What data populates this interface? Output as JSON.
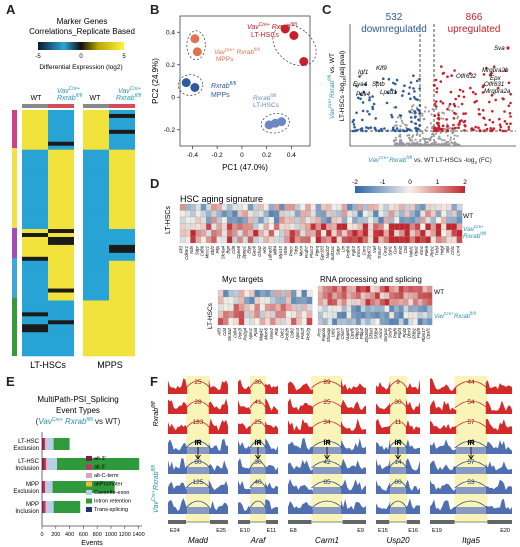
{
  "panels": {
    "A": "A",
    "B": "B",
    "C": "C",
    "D": "D",
    "E": "E",
    "F": "F"
  },
  "panel_a": {
    "title_line1": "Marker Genes",
    "title_line2": "Correlations_Replicate Based",
    "colorbar_ticks": [
      "-5",
      "0",
      "5"
    ],
    "colorbar_label": "Differential Expression (log2)",
    "col_wt_1": "WT",
    "col_ko_1_a": "Vav",
    "col_ko_1_b": "Cre+",
    "col_ko_1_c": "Rxrab",
    "col_ko_1_d": "fl/fl",
    "col_wt_2": "WT",
    "bottom_left": "LT-HSCs",
    "bottom_right": "MPPS"
  },
  "chart_data": [
    {
      "type": "scatter",
      "panel": "B",
      "xlabel": "PC1 (47.0%)",
      "ylabel": "PC2 (24.9%)",
      "xlim": [
        -0.5,
        0.55
      ],
      "ylim": [
        -0.3,
        0.5
      ],
      "xticks": [
        "-0.4",
        "-0.2",
        "0",
        "0.2",
        "0.4"
      ],
      "yticks": [
        "-0.2",
        "0",
        "0.2",
        "0.4"
      ],
      "series": [
        {
          "name": "Vav Cre+ Rxrab fl/fl LT-HSCs",
          "color": "#c8202a",
          "points": [
            [
              0.35,
              0.42
            ],
            [
              0.42,
              0.38
            ],
            [
              0.5,
              0.22
            ]
          ]
        },
        {
          "name": "Vav Cre+ Rxrab fl/fl MPPs",
          "color": "#e0734f",
          "points": [
            [
              -0.38,
              0.36
            ],
            [
              -0.36,
              0.28
            ]
          ]
        },
        {
          "name": "Rxrab fl/fl MPPs",
          "color": "#2e5b9a",
          "points": [
            [
              -0.45,
              0.09
            ],
            [
              -0.38,
              0.06
            ]
          ]
        },
        {
          "name": "Rxrab fl/fl LT-HSCs",
          "color": "#6e86c3",
          "points": [
            [
              0.22,
              -0.17
            ],
            [
              0.27,
              -0.16
            ],
            [
              0.32,
              -0.15
            ]
          ]
        }
      ],
      "labels": {
        "red_1": "Vav",
        "red_2": "Cre+",
        "red_3": " Rxrab",
        "red_4": "fl/fl",
        "red_5": "LT-HSCs",
        "orange_1": "Vav",
        "orange_2": "Cre+",
        "orange_3": " Rxrab",
        "orange_4": "fl/fl",
        "orange_5": "MPPs",
        "blue_1": "Rxrab",
        "blue_2": "fl/fl",
        "blue_3": "MPPs",
        "lblue_1": "Rxrab",
        "lblue_2": "fl/fl",
        "lblue_3": "LT-HSCs"
      }
    },
    {
      "type": "scatter",
      "panel": "C",
      "down_count": "532",
      "down_label": "downregulated",
      "up_count": "866",
      "up_label": "upregulated",
      "xlabel_1": "Vav",
      "xlabel_2": "Cre+",
      "xlabel_3": "Rxrab",
      "xlabel_4": "fl/fl",
      "xlabel_5": " vs. WT LT-HSCs -log",
      "xlabel_6": "2",
      "xlabel_7": " (FC)",
      "ylabel_1": "Vav",
      "ylabel_2": "Cre+",
      "ylabel_3": "Rxrab",
      "ylabel_4": "fl/fl",
      "ylabel_5": " vs. WT",
      "ylabel_6": "LT-HSCs -log",
      "ylabel_7": "10",
      "ylabel_8": "(adj pval)",
      "gene_labels": [
        "Sva",
        "Igf1",
        "Klf9",
        "Eya4",
        "Sptb",
        "Pdk4",
        "Lpcd1",
        "Olfr632",
        "Mrgpra2b",
        "Epx",
        "Olfr631",
        "Mrgpra2a"
      ]
    },
    {
      "type": "heatmap",
      "panel": "D",
      "colorbar_ticks": [
        "-2",
        "-1",
        "0",
        "1",
        "2"
      ],
      "title_main": "HSC aging signature",
      "ylabel": "LT-HSCs",
      "row_wt": "WT",
      "row_ko_1": "Vav",
      "row_ko_2": "Cre+",
      "row_ko_3": "Rxrab",
      "row_ko_4": "fl/fl",
      "aging_genes": [
        "Flt3",
        "Cdk5r1",
        "Ndn",
        "Sdpr",
        "Cd86",
        "Mccc1",
        "Ebf2",
        "Pltp",
        "Slc6a4",
        "Bgn",
        "Cd9",
        "Cpne8",
        "Dpep1",
        "Ebp",
        "Gas6",
        "Gfra2",
        "Hdc",
        "Ldlrad3",
        "Mllt4",
        "Myo10",
        "Nt5e",
        "Procr",
        "Tdrp",
        "Mycn",
        "Pcdh7",
        "Plscr2",
        "Ptprq",
        "Gpr183",
        "Nucb2",
        "Sult1a1",
        "Sdpr",
        "Ltn",
        "Pcdh9",
        "Fgfr2",
        "Emcn",
        "Coro",
        "Zfp672",
        "Vwf",
        "Trim47",
        "Casp",
        "Ssh1",
        "Gsn",
        "Fhl2",
        "Ctsl",
        "Ndel1",
        "Ppa1",
        "Ktn1",
        "Pde5",
        "Plcb1",
        "Tnfsf",
        "Hdgf",
        "Mpl",
        "Chl1",
        "Lrrc4"
      ],
      "myc_title": "Myc targets",
      "myc_genes": [
        "Atf3",
        "Cd4",
        "Slc3a2",
        "Cdk4",
        "Polr2l",
        "Pa2g4",
        "Npm1",
        "Ppid",
        "Mapk1",
        "Mcm5",
        "Nme2",
        "Phb",
        "Odc1",
        "Polr2h",
        "Cdk2",
        "Npm3",
        "Polr2f",
        "Polr2g"
      ],
      "rna_title": "RNA processing and splicing",
      "rna_genes": [
        "Prcc",
        "Papola",
        "Sfswap",
        "Urb1",
        "Rnpc3",
        "Cnot7",
        "Nup62",
        "Cpsf6",
        "Ptbp3",
        "Ptbp2",
        "Zfp36l2",
        "Sf3a3",
        "Sf3b4",
        "Acin1",
        "Snrpa1",
        "Srsf9",
        "Prpf6",
        "Prpf4",
        "Ppil2",
        "Dhx9",
        "Sf3b1",
        "Prpf8",
        "Rbm17",
        "Cpsf1"
      ]
    },
    {
      "type": "bar",
      "panel": "E",
      "title": "MultiPath-PSI_Splicing",
      "subtitle_1": "Event Types",
      "subtitle_2": "(",
      "subtitle_3": "Vav",
      "subtitle_4": "Cre+",
      "subtitle_5": " Rxrab",
      "subtitle_6": "fl/fl",
      "subtitle_7": " vs WT)",
      "categories": [
        "LT-HSC Exclusion",
        "LT-HSC Inclusion",
        "MPP Exclusion",
        "MPP Inclusion"
      ],
      "category_lines": [
        [
          "LT-HSC",
          "Exclusion"
        ],
        [
          "LT-HSC",
          "Inclusion"
        ],
        [
          "MPP",
          "Exclusion"
        ],
        [
          "MPP",
          "Inclusion"
        ]
      ],
      "xlabel": "Events",
      "xlim": [
        0,
        1450
      ],
      "xticks": [
        0,
        200,
        400,
        600,
        800,
        1000,
        1200,
        1400
      ],
      "legend": [
        "alt-3'",
        "alt-5'",
        "alt-C-term",
        "altPromoter",
        "Cassette-exon",
        "Intron retention",
        "Trans-splicing"
      ],
      "series_colors": [
        "#7d1f4f",
        "#c4306b",
        "#d9a6c2",
        "#f2b73c",
        "#b7cde8",
        "#2f9a3b",
        "#26336e"
      ],
      "series": [
        {
          "name": "alt-3'",
          "values": [
            22,
            30,
            24,
            26
          ]
        },
        {
          "name": "alt-5'",
          "values": [
            22,
            30,
            22,
            24
          ]
        },
        {
          "name": "alt-C-term",
          "values": [
            8,
            10,
            6,
            8
          ]
        },
        {
          "name": "altPromoter",
          "values": [
            6,
            8,
            6,
            6
          ]
        },
        {
          "name": "Cassette-exon",
          "values": [
            110,
            140,
            95,
            105
          ]
        },
        {
          "name": "Intron retention",
          "values": [
            232,
            1192,
            900,
            385
          ]
        },
        {
          "name": "Trans-splicing",
          "values": [
            0,
            0,
            0,
            0
          ]
        }
      ]
    }
  ],
  "panel_f": {
    "genes": [
      "Madd",
      "Araf",
      "Carm1",
      "Usp20",
      "Itga5"
    ],
    "row_label_top_1": "Rxrab",
    "row_label_top_2": "fl/fl",
    "row_label_bot_1": "Vav",
    "row_label_bot_2": "Cre+",
    "row_label_bot_3": "Rxrab",
    "row_label_bot_4": "fl/fl",
    "ir_label": "IR",
    "exon_labels": [
      "E24",
      "E25",
      "E10",
      "E11",
      "E8",
      "E9",
      "E15",
      "E16",
      "E19",
      "E20"
    ],
    "junction_counts_top": [
      [
        "25",
        "28",
        "183"
      ],
      [
        "30",
        "41",
        "25"
      ],
      [
        "89",
        "25",
        "34"
      ],
      [
        "9",
        "30",
        "11"
      ],
      [
        "44",
        "54",
        "57",
        "27"
      ]
    ],
    "junction_counts_bot": [
      [
        "40",
        "60",
        "125"
      ],
      [
        "38",
        "30",
        "40"
      ],
      [
        "56",
        "42",
        "65"
      ],
      [
        "30",
        "14",
        "60"
      ],
      [
        "40",
        "57",
        "53",
        "59"
      ]
    ]
  }
}
